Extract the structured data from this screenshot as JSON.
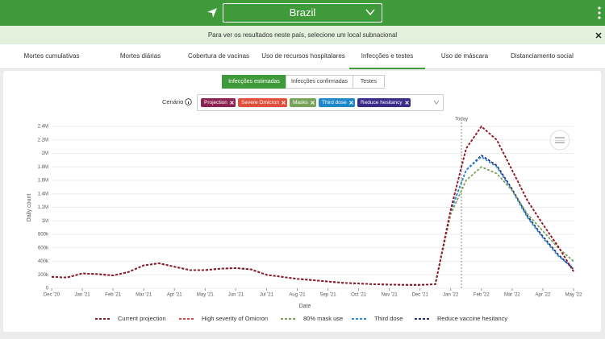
{
  "header": {
    "location": "Brazil"
  },
  "notice": "Para ver os resultados neste país, selecione um local subnacional",
  "tabs": [
    "Mortes cumulativas",
    "Mortes diárias",
    "Cobertura de vacinas",
    "Uso de recursos hospitalares",
    "Infecções e testes",
    "Uso de máscara",
    "Distanciamento social"
  ],
  "subtabs": [
    "Infecções estimadas",
    "Infecções confirmadas",
    "Testes"
  ],
  "scenario": {
    "label": "Cenário",
    "chips": [
      {
        "text": "Projection",
        "color": "#8b2252"
      },
      {
        "text": "Severe Omicron",
        "color": "#e0503a"
      },
      {
        "text": "Masks",
        "color": "#7aa35a"
      },
      {
        "text": "Third dose",
        "color": "#1e88c8"
      },
      {
        "text": "Reduce hesitancy",
        "color": "#3a2d8a"
      }
    ]
  },
  "chart_data": {
    "type": "line",
    "xlabel": "Date",
    "ylabel": "Daily count",
    "annotation": "Today",
    "grid": true,
    "linestyle": "dashed",
    "legend": "bottom",
    "categories": [
      "Dec '20",
      null,
      "Jan '21",
      null,
      "Feb '21",
      null,
      "Mar '21",
      null,
      "Apr '21",
      null,
      "May '21",
      null,
      "Jun '21",
      null,
      "Jul '21",
      null,
      "Aug '21",
      null,
      "Sep '21",
      null,
      "Oct '21",
      null,
      "Nov '21",
      null,
      "Dec '21",
      null,
      "Jan '22",
      null,
      "Feb '22",
      null,
      "Mar '22",
      null,
      "Apr '22",
      null,
      "May '22"
    ],
    "ylim": [
      0,
      2400000
    ],
    "yticks": [
      0,
      {
        "value": 200000,
        "label": "200k"
      },
      {
        "value": 400000,
        "label": "400k"
      },
      {
        "value": 600000,
        "label": "600k"
      },
      {
        "value": 800000,
        "label": "800k"
      },
      {
        "value": 1000000,
        "label": "1M"
      },
      {
        "value": 1200000,
        "label": "1.2M"
      },
      {
        "value": 1400000,
        "label": "1.4M"
      },
      {
        "value": 1600000,
        "label": "1.6M"
      },
      {
        "value": 1800000,
        "label": "1.8M"
      },
      {
        "value": 2000000,
        "label": "2M"
      },
      {
        "value": 2200000,
        "label": "2.2M"
      },
      {
        "value": 2400000,
        "label": "2.4M"
      }
    ],
    "series": [
      {
        "name": "Current projection",
        "color": "#8b1a2b",
        "values": [
          170000,
          160000,
          220000,
          210000,
          190000,
          240000,
          340000,
          370000,
          320000,
          270000,
          270000,
          290000,
          300000,
          280000,
          200000,
          170000,
          140000,
          120000,
          100000,
          80000,
          70000,
          60000,
          55000,
          50000,
          50000,
          60000,
          1170000,
          2070000,
          2400000,
          2200000,
          1750000,
          1300000,
          950000,
          620000,
          250000
        ]
      },
      {
        "name": "High severity of Omicron",
        "color": "#e04040",
        "values": [
          170000,
          160000,
          220000,
          210000,
          190000,
          240000,
          340000,
          370000,
          320000,
          270000,
          270000,
          290000,
          300000,
          280000,
          200000,
          170000,
          140000,
          120000,
          100000,
          80000,
          70000,
          60000,
          55000,
          50000,
          50000,
          60000,
          1170000,
          2070000,
          2400000,
          2200000,
          1750000,
          1300000,
          950000,
          620000,
          250000
        ]
      },
      {
        "name": "80% mask use",
        "color": "#7aa35a",
        "values": [
          170000,
          160000,
          220000,
          210000,
          190000,
          240000,
          340000,
          370000,
          320000,
          270000,
          270000,
          290000,
          300000,
          280000,
          200000,
          170000,
          140000,
          120000,
          100000,
          80000,
          70000,
          60000,
          55000,
          50000,
          50000,
          60000,
          1100000,
          1600000,
          1800000,
          1700000,
          1450000,
          1100000,
          850000,
          600000,
          400000
        ]
      },
      {
        "name": "Third dose",
        "color": "#2a8fd0",
        "values": [
          170000,
          160000,
          220000,
          210000,
          190000,
          240000,
          340000,
          370000,
          320000,
          270000,
          270000,
          290000,
          300000,
          280000,
          200000,
          170000,
          140000,
          120000,
          100000,
          80000,
          70000,
          60000,
          55000,
          50000,
          50000,
          60000,
          1150000,
          1750000,
          1950000,
          1800000,
          1450000,
          1050000,
          750000,
          480000,
          300000
        ]
      },
      {
        "name": "Reduce vaccine hesitancy",
        "color": "#2a2a7a",
        "values": [
          170000,
          160000,
          220000,
          210000,
          190000,
          240000,
          340000,
          370000,
          320000,
          270000,
          270000,
          290000,
          300000,
          280000,
          200000,
          170000,
          140000,
          120000,
          100000,
          80000,
          70000,
          60000,
          55000,
          50000,
          50000,
          60000,
          1150000,
          1750000,
          1970000,
          1820000,
          1470000,
          1070000,
          770000,
          500000,
          280000
        ]
      }
    ]
  }
}
